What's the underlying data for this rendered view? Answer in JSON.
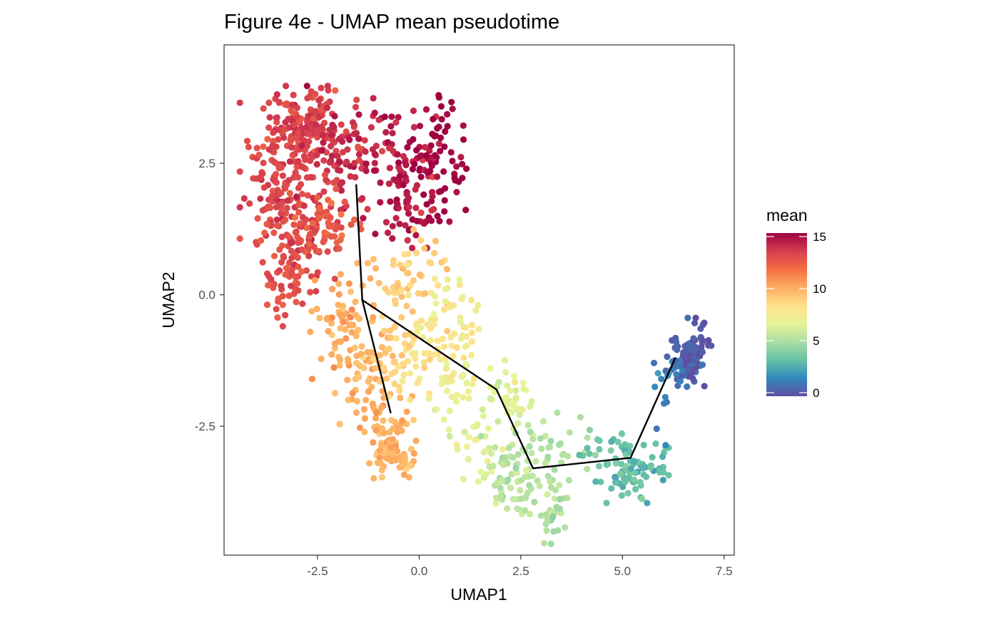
{
  "chart_data": {
    "type": "scatter",
    "title": "Figure 4e - UMAP mean pseudotime",
    "xlabel": "UMAP1",
    "ylabel": "UMAP2",
    "xlim": [
      -4.8,
      7.75
    ],
    "ylim": [
      -4.95,
      4.75
    ],
    "x_ticks": [
      -2.5,
      0.0,
      2.5,
      5.0,
      7.5
    ],
    "x_tick_labels": [
      "-2.5",
      "0.0",
      "2.5",
      "5.0",
      "7.5"
    ],
    "y_ticks": [
      -2.5,
      0.0,
      2.5
    ],
    "y_tick_labels": [
      "-2.5",
      "0.0",
      "2.5"
    ],
    "grid": false,
    "colormap": "Spectral (reversed)",
    "color_stops": [
      "#5E4FA2",
      "#3288BD",
      "#66C2A5",
      "#ABDDA4",
      "#E6F598",
      "#FEE08B",
      "#FDAE61",
      "#F46D43",
      "#D53E4F",
      "#9E0142"
    ],
    "legend": {
      "title": "mean",
      "placement": "right",
      "range": [
        0,
        15
      ],
      "ticks": [
        0,
        5,
        10,
        15
      ],
      "tick_labels": [
        "0",
        "5",
        "10",
        "15"
      ]
    },
    "clusters": [
      {
        "cx": -3.2,
        "cy": 2.0,
        "sx": 0.55,
        "sy": 0.75,
        "n": 180,
        "mean": 13.0
      },
      {
        "cx": -2.7,
        "cy": 3.2,
        "sx": 0.45,
        "sy": 0.35,
        "n": 120,
        "mean": 13.2
      },
      {
        "cx": -3.0,
        "cy": 0.8,
        "sx": 0.45,
        "sy": 0.45,
        "n": 80,
        "mean": 12.8
      },
      {
        "cx": -3.4,
        "cy": 0.0,
        "sx": 0.2,
        "sy": 0.35,
        "n": 20,
        "mean": 12.6
      },
      {
        "cx": -1.9,
        "cy": 2.6,
        "sx": 0.45,
        "sy": 0.6,
        "n": 80,
        "mean": 13.6
      },
      {
        "cx": -2.2,
        "cy": 1.4,
        "sx": 0.35,
        "sy": 0.4,
        "n": 40,
        "mean": 12.3
      },
      {
        "cx": -0.5,
        "cy": 2.7,
        "sx": 0.45,
        "sy": 0.6,
        "n": 70,
        "mean": 14.2
      },
      {
        "cx": 0.5,
        "cy": 2.6,
        "sx": 0.3,
        "sy": 0.55,
        "n": 70,
        "mean": 15.0
      },
      {
        "cx": -0.2,
        "cy": 1.6,
        "sx": 0.4,
        "sy": 0.35,
        "n": 40,
        "mean": 14.3
      },
      {
        "cx": -1.8,
        "cy": -0.5,
        "sx": 0.4,
        "sy": 0.5,
        "n": 70,
        "mean": 10.0
      },
      {
        "cx": -1.3,
        "cy": -1.5,
        "sx": 0.35,
        "sy": 0.5,
        "n": 50,
        "mean": 9.8
      },
      {
        "cx": -0.8,
        "cy": -2.7,
        "sx": 0.3,
        "sy": 0.35,
        "n": 60,
        "mean": 9.9
      },
      {
        "cx": -0.6,
        "cy": -3.05,
        "sx": 0.25,
        "sy": 0.2,
        "n": 40,
        "mean": 10.0
      },
      {
        "cx": -0.3,
        "cy": 0.3,
        "sx": 0.45,
        "sy": 0.45,
        "n": 50,
        "mean": 8.9
      },
      {
        "cx": 0.2,
        "cy": -0.9,
        "sx": 0.5,
        "sy": 0.5,
        "n": 60,
        "mean": 8.0
      },
      {
        "cx": -0.7,
        "cy": -1.2,
        "sx": 0.3,
        "sy": 0.35,
        "n": 30,
        "mean": 8.8
      },
      {
        "cx": 0.8,
        "cy": -0.4,
        "sx": 0.35,
        "sy": 0.4,
        "n": 30,
        "mean": 7.5
      },
      {
        "cx": 1.0,
        "cy": -1.8,
        "sx": 0.4,
        "sy": 0.3,
        "n": 30,
        "mean": 7.0
      },
      {
        "cx": 1.5,
        "cy": -2.8,
        "sx": 0.35,
        "sy": 0.35,
        "n": 30,
        "mean": 6.6
      },
      {
        "cx": 2.3,
        "cy": -2.0,
        "sx": 0.25,
        "sy": 0.35,
        "n": 40,
        "mean": 6.5
      },
      {
        "cx": 2.4,
        "cy": -3.4,
        "sx": 0.4,
        "sy": 0.35,
        "n": 70,
        "mean": 5.5
      },
      {
        "cx": 3.3,
        "cy": -4.2,
        "sx": 0.18,
        "sy": 0.35,
        "n": 30,
        "mean": 5.3
      },
      {
        "cx": 3.4,
        "cy": -2.9,
        "sx": 0.4,
        "sy": 0.3,
        "n": 30,
        "mean": 5.2
      },
      {
        "cx": 5.3,
        "cy": -3.3,
        "sx": 0.38,
        "sy": 0.3,
        "n": 80,
        "mean": 3.2
      },
      {
        "cx": 4.6,
        "cy": -3.0,
        "sx": 0.3,
        "sy": 0.25,
        "n": 20,
        "mean": 3.6
      },
      {
        "cx": 6.7,
        "cy": -1.1,
        "sx": 0.22,
        "sy": 0.3,
        "n": 90,
        "mean": 0.4
      },
      {
        "cx": 6.1,
        "cy": -1.4,
        "sx": 0.25,
        "sy": 0.2,
        "n": 20,
        "mean": 1.0
      },
      {
        "cx": 6.0,
        "cy": -2.2,
        "sx": 0.15,
        "sy": 0.3,
        "n": 6,
        "mean": 1.5
      }
    ],
    "trajectory": [
      {
        "x": [
          -1.55,
          -1.4,
          -0.7
        ],
        "y": [
          2.1,
          -0.1,
          -2.25
        ]
      },
      {
        "x": [
          -1.4,
          1.9,
          2.8,
          5.2,
          6.3
        ],
        "y": [
          -0.1,
          -1.8,
          -3.3,
          -3.1,
          -1.2
        ]
      }
    ]
  }
}
